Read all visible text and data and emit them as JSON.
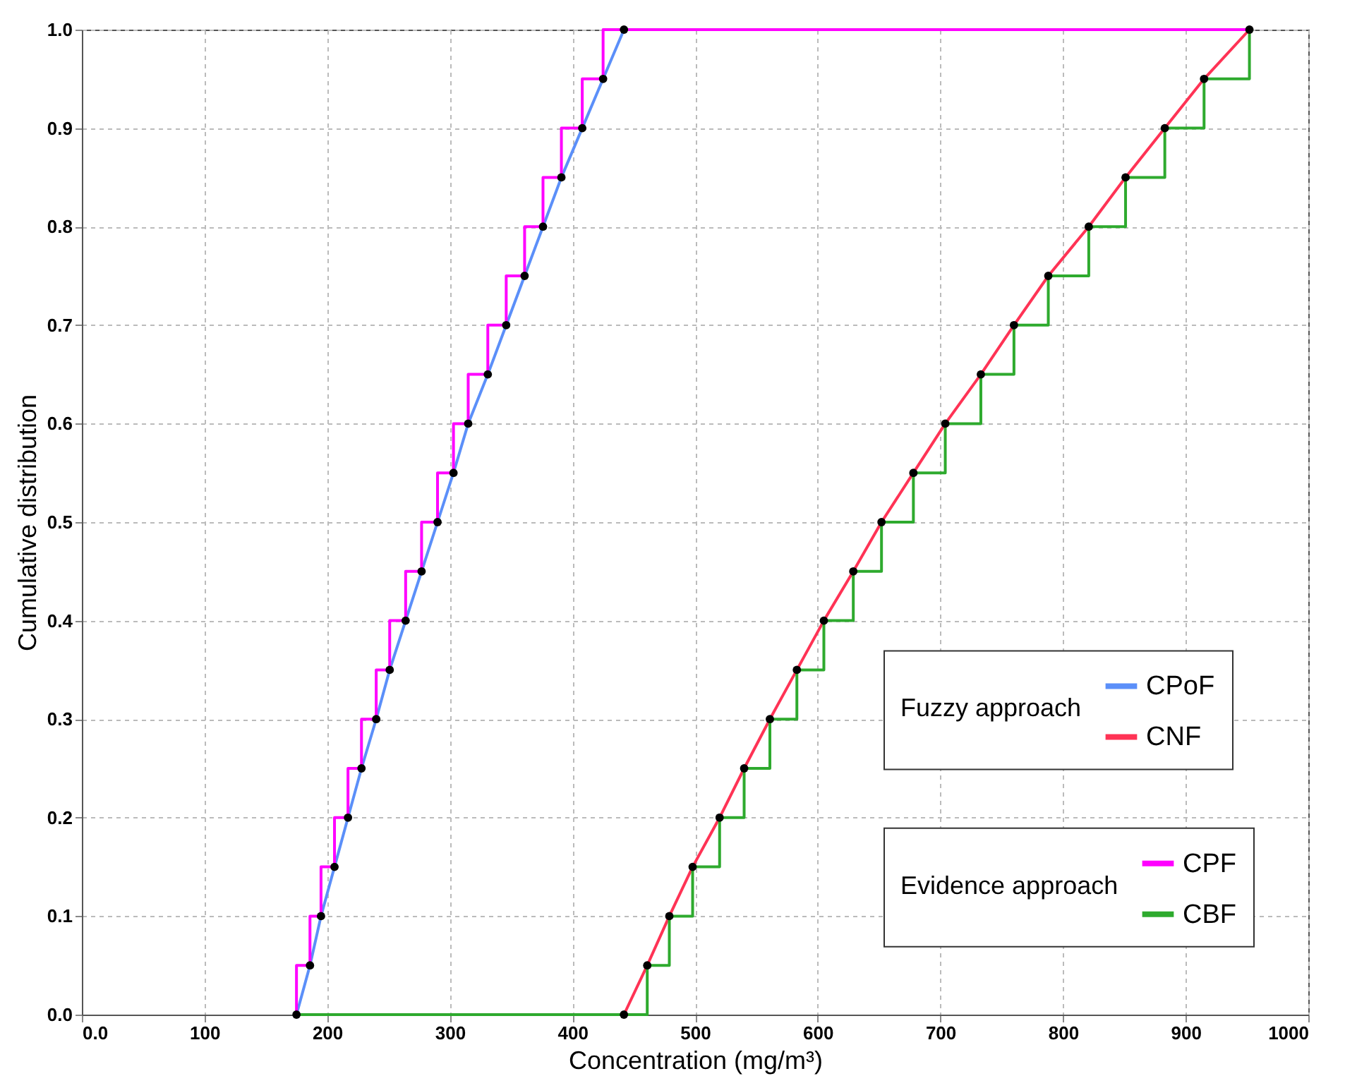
{
  "chart_data": {
    "type": "line",
    "xlabel": "Concentration (mg/m³)",
    "ylabel": "Cumulative distribution",
    "annotations": [
      "Fuzzy approach",
      "Evidence approach"
    ],
    "xlim": [
      0,
      1000
    ],
    "xticks": [
      {
        "value": 0,
        "label": "0.0"
      },
      100,
      200,
      300,
      400,
      500,
      600,
      700,
      800,
      900,
      1000
    ],
    "ylim": [
      0,
      1
    ],
    "yticks": [
      {
        "value": 0,
        "label": "0.0"
      },
      0.1,
      0.2,
      0.3,
      0.4,
      0.5,
      0.6,
      0.7,
      0.8,
      0.9,
      {
        "value": 1,
        "label": "1.0"
      }
    ],
    "grid": true,
    "legend": "bottom right",
    "marker": "none",
    "line_style": "solid",
    "series": [
      {
        "name": "CPoF",
        "color": "#5b8ff9",
        "x": [
          175,
          186,
          195,
          206,
          217,
          228,
          240,
          251,
          264,
          277,
          290,
          303,
          315,
          331,
          346,
          361,
          376,
          391,
          408,
          425,
          442
        ],
        "values": [
          0,
          0.05,
          0.1,
          0.15,
          0.2,
          0.25,
          0.3,
          0.35,
          0.4,
          0.45,
          0.5,
          0.55,
          0.6,
          0.65,
          0.7,
          0.75,
          0.8,
          0.85,
          0.9,
          0.95,
          1
        ]
      },
      {
        "name": "CNF",
        "color": "#ff3355",
        "x": [
          442,
          461,
          479,
          498,
          520,
          540,
          561,
          583,
          605,
          629,
          652,
          678,
          704,
          733,
          760,
          788,
          821,
          851,
          883,
          915,
          952
        ],
        "values": [
          0,
          0.05,
          0.1,
          0.15,
          0.2,
          0.25,
          0.3,
          0.35,
          0.4,
          0.45,
          0.5,
          0.55,
          0.6,
          0.65,
          0.7,
          0.75,
          0.8,
          0.85,
          0.9,
          0.95,
          1
        ]
      },
      {
        "name": "CPF",
        "color": "#ff00ff",
        "x": [
          175,
          175,
          186,
          186,
          195,
          195,
          206,
          206,
          217,
          217,
          228,
          228,
          240,
          240,
          251,
          251,
          264,
          264,
          277,
          277,
          290,
          290,
          303,
          303,
          315,
          315,
          331,
          331,
          346,
          346,
          361,
          361,
          376,
          376,
          391,
          391,
          408,
          408,
          425,
          425,
          442,
          952
        ],
        "values": [
          0,
          0.05,
          0.05,
          0.1,
          0.1,
          0.15,
          0.15,
          0.2,
          0.2,
          0.25,
          0.25,
          0.3,
          0.3,
          0.35,
          0.35,
          0.4,
          0.4,
          0.45,
          0.45,
          0.5,
          0.5,
          0.55,
          0.55,
          0.6,
          0.6,
          0.65,
          0.65,
          0.7,
          0.7,
          0.75,
          0.75,
          0.8,
          0.8,
          0.85,
          0.85,
          0.9,
          0.9,
          0.95,
          0.95,
          1,
          1,
          1
        ]
      },
      {
        "name": "CBF",
        "color": "#2eaa2e",
        "x": [
          175,
          461,
          461,
          479,
          479,
          498,
          498,
          520,
          520,
          540,
          540,
          561,
          561,
          583,
          583,
          605,
          605,
          629,
          629,
          652,
          652,
          678,
          678,
          704,
          704,
          733,
          733,
          760,
          760,
          788,
          788,
          821,
          821,
          851,
          851,
          883,
          883,
          915,
          915,
          952,
          952
        ],
        "values": [
          0,
          0,
          0.05,
          0.05,
          0.1,
          0.1,
          0.15,
          0.15,
          0.2,
          0.2,
          0.25,
          0.25,
          0.3,
          0.3,
          0.35,
          0.35,
          0.4,
          0.4,
          0.45,
          0.45,
          0.5,
          0.5,
          0.55,
          0.55,
          0.6,
          0.6,
          0.65,
          0.65,
          0.7,
          0.7,
          0.75,
          0.75,
          0.8,
          0.8,
          0.85,
          0.85,
          0.9,
          0.9,
          0.95,
          0.95,
          1
        ]
      },
      {
        "type": "scatter",
        "marker": "circle",
        "color": "#000000",
        "x": [
          175,
          186,
          195,
          206,
          217,
          228,
          240,
          251,
          264,
          277,
          290,
          303,
          315,
          331,
          346,
          361,
          376,
          391,
          408,
          425,
          442
        ],
        "values": [
          0,
          0.05,
          0.1,
          0.15,
          0.2,
          0.25,
          0.3,
          0.35,
          0.4,
          0.45,
          0.5,
          0.55,
          0.6,
          0.65,
          0.7,
          0.75,
          0.8,
          0.85,
          0.9,
          0.95,
          1
        ]
      },
      {
        "type": "scatter",
        "marker": "circle",
        "color": "#000000",
        "x": [
          442,
          461,
          479,
          498,
          520,
          540,
          561,
          583,
          605,
          629,
          652,
          678,
          704,
          733,
          760,
          788,
          821,
          851,
          883,
          915,
          952
        ],
        "values": [
          0,
          0.05,
          0.1,
          0.15,
          0.2,
          0.25,
          0.3,
          0.35,
          0.4,
          0.45,
          0.5,
          0.55,
          0.6,
          0.65,
          0.7,
          0.75,
          0.8,
          0.85,
          0.9,
          0.95,
          1
        ]
      }
    ]
  }
}
